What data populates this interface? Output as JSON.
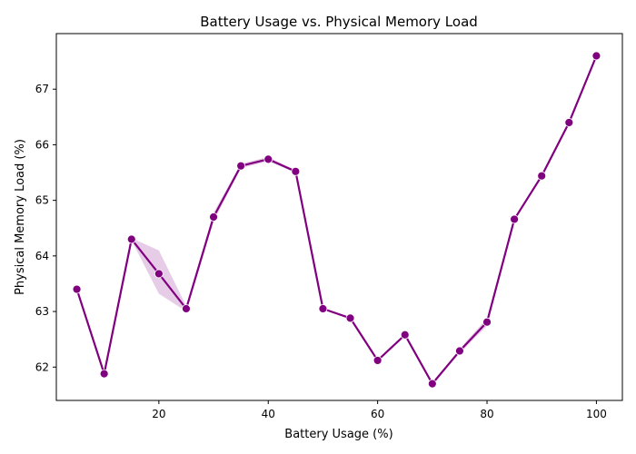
{
  "colors": {
    "line": "#800080",
    "band": "#800080",
    "axis": "#000000",
    "background": "#ffffff"
  },
  "chart_data": {
    "type": "line",
    "title": "Battery Usage vs. Physical Memory Load",
    "xlabel": "Battery Usage (%)",
    "ylabel": "Physical Memory Load (%)",
    "xlim": [
      1.25,
      104.75
    ],
    "ylim": [
      61.4,
      68.0
    ],
    "x_ticks": [
      20,
      40,
      60,
      80,
      100
    ],
    "y_ticks": [
      62,
      63,
      64,
      65,
      66,
      67
    ],
    "grid": false,
    "legend": "none",
    "series": [
      {
        "x": [
          5,
          10,
          15,
          20,
          25,
          30,
          35,
          40,
          45,
          50,
          55,
          60,
          65,
          70,
          75,
          80,
          85,
          90,
          95,
          100
        ],
        "y": [
          63.4,
          61.88,
          64.3,
          63.68,
          63.05,
          64.7,
          65.62,
          65.74,
          65.52,
          63.05,
          62.88,
          62.12,
          62.58,
          61.7,
          62.29,
          62.81,
          64.66,
          65.44,
          66.4,
          67.6
        ],
        "ci_lower": [
          63.4,
          61.88,
          64.28,
          63.32,
          63.0,
          64.62,
          65.58,
          65.7,
          65.5,
          63.05,
          62.88,
          62.12,
          62.58,
          61.7,
          62.25,
          62.74,
          64.64,
          65.44,
          66.4,
          67.58
        ],
        "ci_upper": [
          63.4,
          61.88,
          64.32,
          64.1,
          63.1,
          64.78,
          65.66,
          65.78,
          65.54,
          63.05,
          62.88,
          62.12,
          62.58,
          61.7,
          62.33,
          62.88,
          64.68,
          65.44,
          66.4,
          67.62
        ]
      }
    ]
  }
}
